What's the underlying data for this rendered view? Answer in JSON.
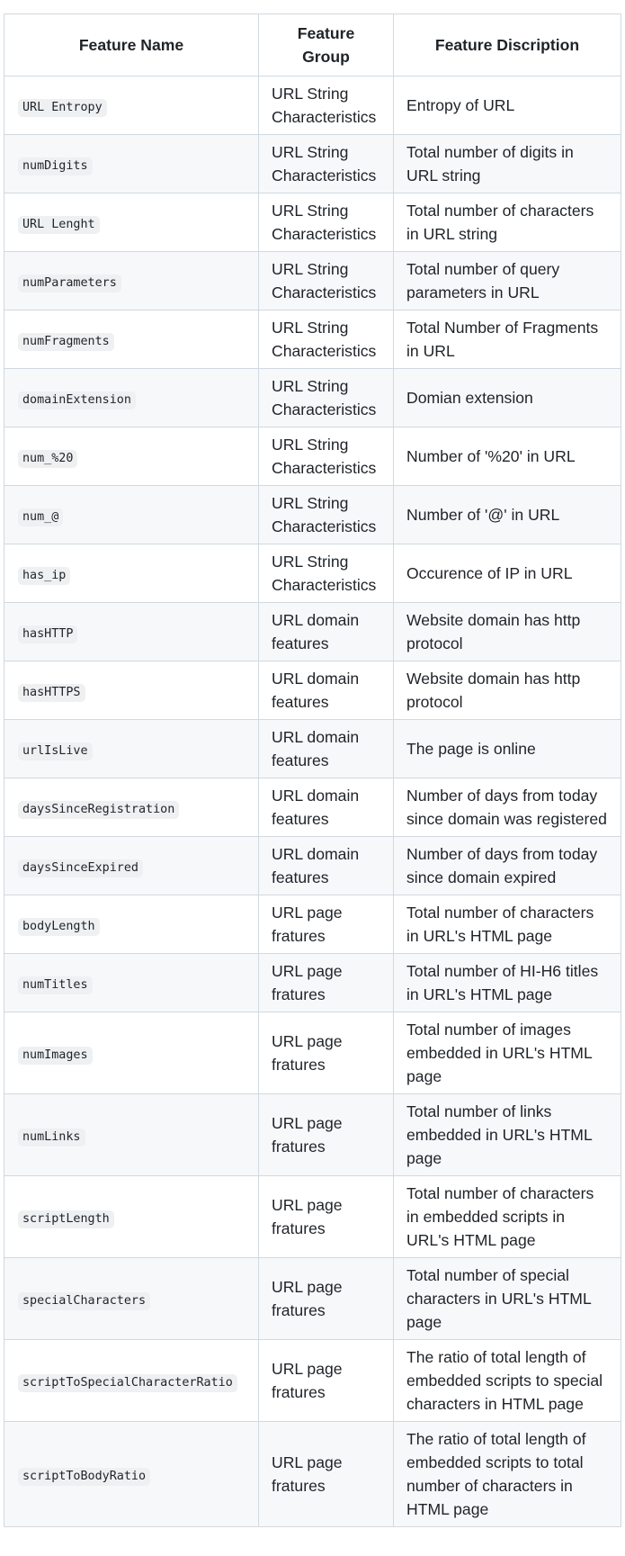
{
  "table": {
    "headers": [
      "Feature Name",
      "Feature Group",
      "Feature Discription"
    ],
    "rows": [
      {
        "name": "URL Entropy",
        "group": "URL String Characteristics",
        "desc": "Entropy of URL"
      },
      {
        "name": "numDigits",
        "group": "URL String Characteristics",
        "desc": "Total number of digits in URL string"
      },
      {
        "name": "URL Lenght",
        "group": "URL String Characteristics",
        "desc": "Total number of characters in URL string"
      },
      {
        "name": "numParameters",
        "group": "URL String Characteristics",
        "desc": "Total number of query parameters in URL"
      },
      {
        "name": "numFragments",
        "group": "URL String Characteristics",
        "desc": "Total Number of Fragments in URL"
      },
      {
        "name": "domainExtension",
        "group": "URL String Characteristics",
        "desc": "Domian extension"
      },
      {
        "name": "num_%20",
        "group": "URL String Characteristics",
        "desc": "Number of '%20' in URL"
      },
      {
        "name": "num_@",
        "group": "URL String Characteristics",
        "desc": "Number of '@' in URL"
      },
      {
        "name": "has_ip",
        "group": "URL String Characteristics",
        "desc": "Occurence of IP in URL"
      },
      {
        "name": "hasHTTP",
        "group": "URL domain features",
        "desc": "Website domain has http protocol"
      },
      {
        "name": "hasHTTPS",
        "group": "URL domain features",
        "desc": "Website domain has http protocol"
      },
      {
        "name": "urlIsLive",
        "group": "URL domain features",
        "desc": "The page is online"
      },
      {
        "name": "daysSinceRegistration",
        "group": "URL domain features",
        "desc": "Number of days from today since domain was registered"
      },
      {
        "name": "daysSinceExpired",
        "group": "URL domain features",
        "desc": "Number of days from today since domain expired"
      },
      {
        "name": "bodyLength",
        "group": "URL page fratures",
        "desc": "Total number of characters in URL's HTML page"
      },
      {
        "name": "numTitles",
        "group": "URL page fratures",
        "desc": "Total number of HI-H6 titles in URL's HTML page"
      },
      {
        "name": "numImages",
        "group": "URL page fratures",
        "desc": "Total number of images embedded in URL's HTML page"
      },
      {
        "name": "numLinks",
        "group": "URL page fratures",
        "desc": "Total number of links embedded in URL's HTML page"
      },
      {
        "name": "scriptLength",
        "group": "URL page fratures",
        "desc": "Total number of characters in embedded scripts in URL's HTML page"
      },
      {
        "name": "specialCharacters",
        "group": "URL page fratures",
        "desc": "Total number of special characters in URL's HTML page"
      },
      {
        "name": "scriptToSpecialCharacterRatio",
        "group": "URL page fratures",
        "desc": "The ratio of total length of embedded scripts to special characters in HTML page"
      },
      {
        "name": "scriptToBodyRatio",
        "group": "URL page fratures",
        "desc": "The ratio of total length of embedded scripts to total number of characters in HTML page"
      }
    ]
  }
}
